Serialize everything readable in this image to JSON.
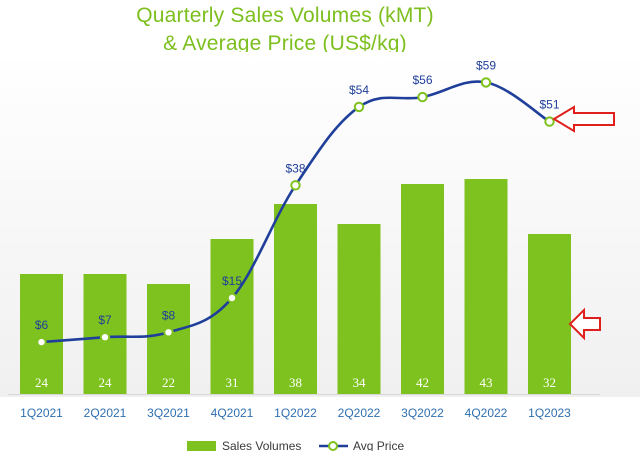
{
  "chart_data": {
    "type": "bar",
    "title": "Quarterly Sales Volumes (kMT)",
    "subtitle": "& Average Price (US$/kg)",
    "categories": [
      "1Q2021",
      "2Q2021",
      "3Q2021",
      "4Q2021",
      "1Q2022",
      "2Q2022",
      "3Q2022",
      "4Q2022",
      "1Q2023"
    ],
    "series": [
      {
        "name": "Sales Volumes",
        "kind": "bar",
        "values": [
          24,
          24,
          22,
          31,
          38,
          34,
          42,
          43,
          32
        ],
        "labels": [
          "24",
          "24",
          "22",
          "31",
          "38",
          "34",
          "42",
          "43",
          "32"
        ]
      },
      {
        "name": "Avg Price",
        "kind": "line",
        "values": [
          6,
          7,
          8,
          15,
          38,
          54,
          56,
          59,
          51
        ],
        "labels": [
          "$6",
          "$7",
          "$8",
          "$15",
          "$38",
          "$54",
          "$56",
          "$59",
          "$51"
        ]
      }
    ],
    "legend": "bottom-center",
    "grid": false,
    "colors": {
      "bar": "#7ec21f",
      "line": "#1f3f9a",
      "marker_stroke": "#7ec21f",
      "title": "#7cbf1e",
      "axis_text": "#2f6fb0",
      "arrow": "#e0201c"
    },
    "annotations": [
      "red-arrow-at-1Q2023-price",
      "red-arrow-at-1Q2023-volume"
    ]
  }
}
